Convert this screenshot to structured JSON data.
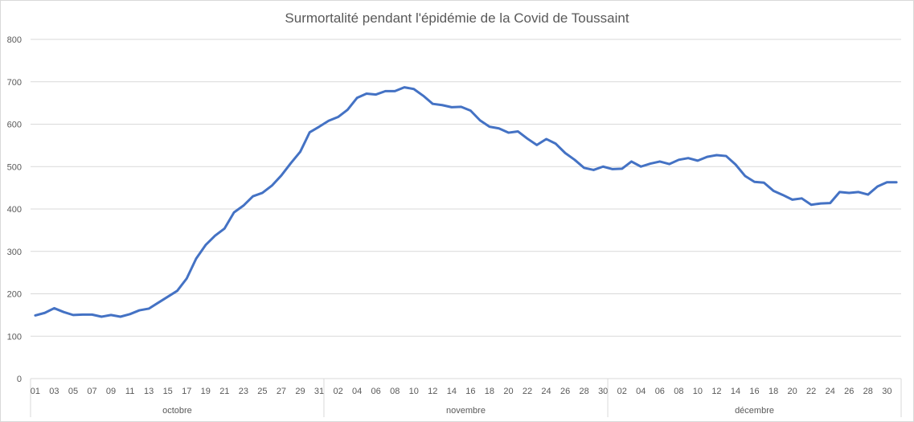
{
  "chart_data": {
    "type": "line",
    "title": "Surmortalité pendant l'épidémie  de la Covid de Toussaint",
    "xlabel": "",
    "ylabel": "",
    "ylim": [
      0,
      800
    ],
    "yticks": [
      0,
      100,
      200,
      300,
      400,
      500,
      600,
      700,
      800
    ],
    "grid": true,
    "legend": "none",
    "line_color": "#4472c4",
    "months": [
      {
        "label": "octobre",
        "days": 31,
        "tick_labels": [
          "01",
          "03",
          "05",
          "07",
          "09",
          "11",
          "13",
          "15",
          "17",
          "19",
          "21",
          "23",
          "25",
          "27",
          "29",
          "31"
        ]
      },
      {
        "label": "novembre",
        "days": 30,
        "tick_labels": [
          "02",
          "04",
          "06",
          "08",
          "10",
          "12",
          "14",
          "16",
          "18",
          "20",
          "22",
          "24",
          "26",
          "28",
          "30"
        ]
      },
      {
        "label": "décembre",
        "days": 31,
        "tick_labels": [
          "02",
          "04",
          "06",
          "08",
          "10",
          "12",
          "14",
          "16",
          "18",
          "20",
          "22",
          "24",
          "26",
          "28",
          "30"
        ]
      }
    ],
    "series": [
      {
        "values": [
          149,
          155,
          166,
          157,
          150,
          151,
          151,
          146,
          150,
          146,
          152,
          161,
          165,
          179,
          193,
          207,
          236,
          283,
          315,
          337,
          354,
          392,
          408,
          430,
          438,
          455,
          479,
          508,
          535,
          581,
          594,
          608,
          617,
          634,
          662,
          672,
          670,
          678,
          678,
          687,
          683,
          667,
          648,
          645,
          640,
          641,
          632,
          609,
          594,
          590,
          580,
          583,
          566,
          551,
          565,
          554,
          532,
          516,
          497,
          492,
          500,
          494,
          495,
          512,
          500,
          507,
          512,
          506,
          516,
          520,
          514,
          523,
          527,
          525,
          505,
          478,
          464,
          462,
          443,
          433,
          422,
          425,
          410,
          413,
          414,
          440,
          438,
          440,
          434,
          453,
          463,
          463
        ]
      }
    ]
  }
}
